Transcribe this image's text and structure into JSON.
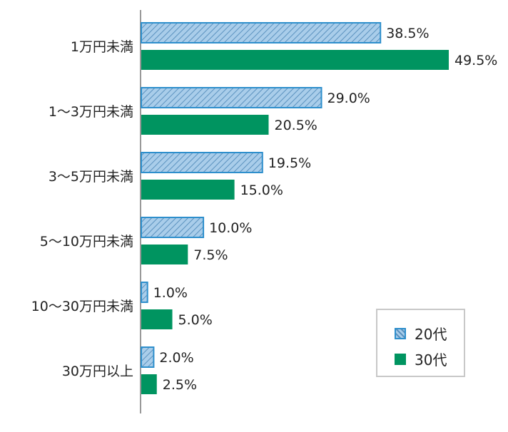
{
  "chart_data": {
    "type": "bar",
    "orientation": "horizontal",
    "categories": [
      "1万円未満",
      "1～3万円未満",
      "3～5万円未満",
      "5～10万円未満",
      "10～30万円未満",
      "30万円以上"
    ],
    "series": [
      {
        "name": "20代",
        "values": [
          38.5,
          29.0,
          19.5,
          10.0,
          1.0,
          2.0
        ],
        "labels": [
          "38.5%",
          "29.0%",
          "19.5%",
          "10.0%",
          "1.0%",
          "2.0%"
        ],
        "pattern": "hatched",
        "color": "#9cc3e6",
        "stroke": "#2e8fcc"
      },
      {
        "name": "30代",
        "values": [
          49.5,
          20.5,
          15.0,
          7.5,
          5.0,
          2.5
        ],
        "labels": [
          "49.5%",
          "20.5%",
          "15.0%",
          "7.5%",
          "5.0%",
          "2.5%"
        ],
        "pattern": "solid",
        "color": "#009460"
      }
    ],
    "xlim": [
      0,
      50
    ],
    "grid": false,
    "legend_position": "bottom-right"
  }
}
